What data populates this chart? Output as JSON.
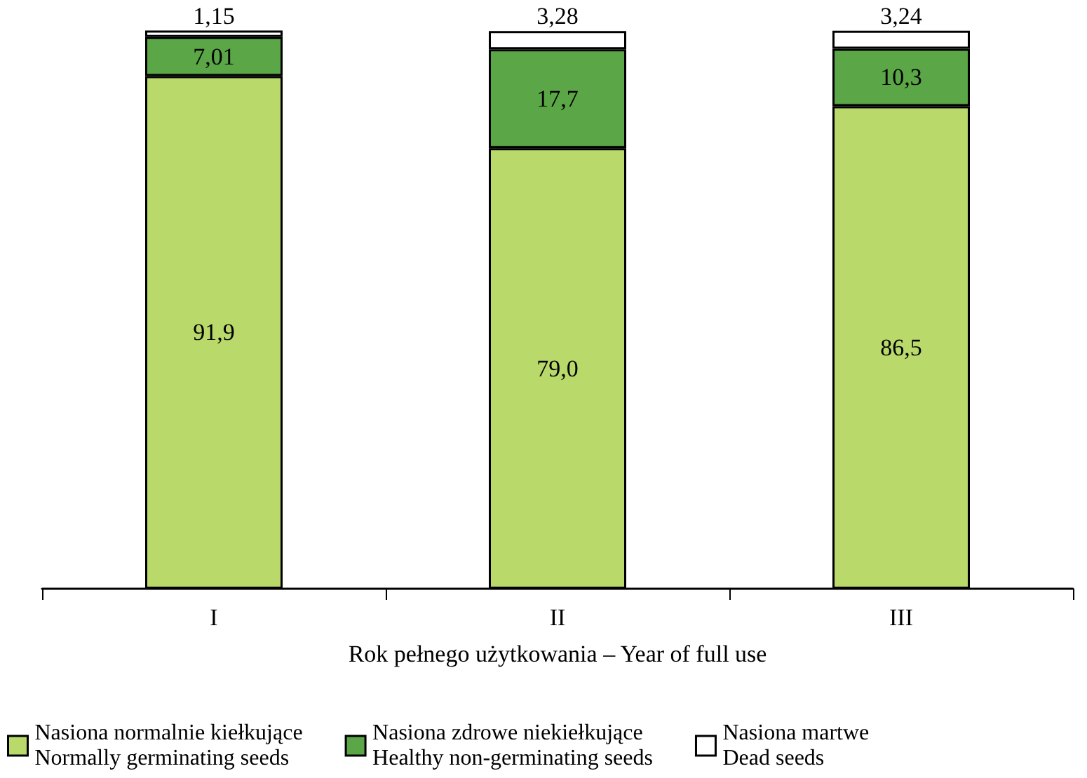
{
  "chart_data": {
    "type": "bar",
    "stacked": true,
    "xlabel": "Rok pełnego użytkowania – Year of full use",
    "categories": [
      "I",
      "II",
      "III"
    ],
    "ylim": [
      0,
      100
    ],
    "tick_labels": "x",
    "legend": "bottom",
    "series": [
      {
        "name": "Nasiona normalnie kiełkujące\nNormally germinating seeds",
        "color": "#b9d96b",
        "values": [
          91.9,
          79.0,
          86.5
        ],
        "value_labels": [
          "91,9",
          "79,0",
          "86,5"
        ]
      },
      {
        "name": "Nasiona zdrowe niekiełkujące\nHealthy non-germinating seeds",
        "color": "#5ba646",
        "values": [
          7.01,
          17.7,
          10.3
        ],
        "value_labels": [
          "7,01",
          "17,7",
          "10,3"
        ]
      },
      {
        "name": "Nasiona martwe\nDead seeds",
        "color": "#ffffff",
        "values": [
          1.15,
          3.28,
          3.24
        ],
        "value_labels": [
          "1,15",
          "3,28",
          "3,24"
        ]
      }
    ]
  }
}
